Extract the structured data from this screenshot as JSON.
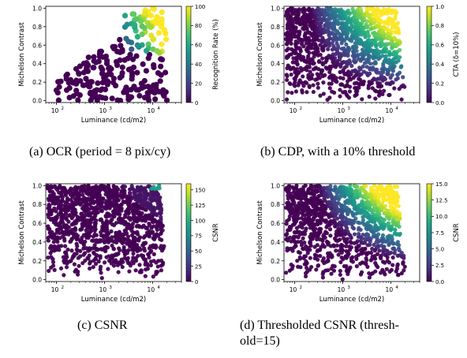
{
  "panels": [
    {
      "caption": "(a)  OCR (period = 8 pix/cy)",
      "xlabel": "Luminance (cd/m2)",
      "ylabel": "Michelson Contrast",
      "cbar_label": "Recognition Rate (%)",
      "cbar_ticks": [
        "0",
        "20",
        "40",
        "60",
        "80",
        "100"
      ],
      "xticks": [
        "10",
        "10",
        "10"
      ],
      "xtick_exps": [
        "2",
        "3",
        "4"
      ],
      "yticks": [
        "0.0",
        "0.2",
        "0.4",
        "0.6",
        "0.8",
        "1.0"
      ]
    },
    {
      "caption": "(b)  CDP, with a 10% threshold",
      "xlabel": "Luminance (cd/m2)",
      "ylabel": "Michelson Contrast",
      "cbar_label": "CTA (δ=10%)",
      "cbar_ticks": [
        "0.0",
        "0.2",
        "0.4",
        "0.6",
        "0.8",
        "1.0"
      ],
      "xticks": [
        "10",
        "10",
        "10"
      ],
      "xtick_exps": [
        "2",
        "3",
        "4"
      ],
      "yticks": [
        "0.0",
        "0.2",
        "0.4",
        "0.6",
        "0.8",
        "1.0"
      ]
    },
    {
      "caption": "(c)  CSNR",
      "xlabel": "Luminance (cd/m2)",
      "ylabel": "Michelson Contrast",
      "cbar_label": "CSNR",
      "cbar_ticks": [
        "0",
        "25",
        "50",
        "75",
        "100",
        "125",
        "150"
      ],
      "xticks": [
        "10",
        "10",
        "10"
      ],
      "xtick_exps": [
        "2",
        "3",
        "4"
      ],
      "yticks": [
        "0.0",
        "0.2",
        "0.4",
        "0.6",
        "0.8",
        "1.0"
      ]
    },
    {
      "caption_line1": "(d)  Thresholded  CSNR  (thresh-",
      "caption_line2": "old=15)",
      "xlabel": "Luminance (cd/m2)",
      "ylabel": "Michelson Contrast",
      "cbar_label": "CSNR",
      "cbar_ticks": [
        "0.0",
        "2.5",
        "5.0",
        "7.5",
        "10.0",
        "12.5",
        "15.0"
      ],
      "xticks": [
        "10",
        "10",
        "10"
      ],
      "xtick_exps": [
        "2",
        "3",
        "4"
      ],
      "yticks": [
        "0.0",
        "0.2",
        "0.4",
        "0.6",
        "0.8",
        "1.0"
      ]
    }
  ],
  "chart_data": [
    {
      "type": "scatter",
      "xscale": "log",
      "xlim": [
        60,
        40000
      ],
      "ylim": [
        -0.02,
        1.02
      ],
      "colormap": "viridis",
      "clim": [
        0,
        100
      ],
      "grid": false,
      "description_values": "sparse random samples; high recognition rate (yellow/green) concentrated at luminance > 3000 and contrast > 0.5"
    },
    {
      "type": "scatter",
      "xscale": "log",
      "xlim": [
        60,
        40000
      ],
      "ylim": [
        -0.02,
        1.02
      ],
      "colormap": "viridis",
      "clim": [
        0,
        1
      ],
      "grid": false,
      "description_values": "dense samples; CTA rises toward 1.0 at high luminance and high contrast"
    },
    {
      "type": "scatter",
      "xscale": "log",
      "xlim": [
        60,
        40000
      ],
      "ylim": [
        -0.02,
        1.02
      ],
      "colormap": "viridis",
      "clim": [
        0,
        160
      ],
      "grid": false,
      "description_values": "dense samples; CSNR near 0 almost everywhere, up to ~150 at the top-right corner"
    },
    {
      "type": "scatter",
      "xscale": "log",
      "xlim": [
        60,
        40000
      ],
      "ylim": [
        -0.02,
        1.02
      ],
      "colormap": "viridis",
      "clim": [
        0,
        15
      ],
      "grid": false,
      "description_values": "dense samples; thresholded CSNR rises to 15 at high luminance and high contrast"
    }
  ]
}
